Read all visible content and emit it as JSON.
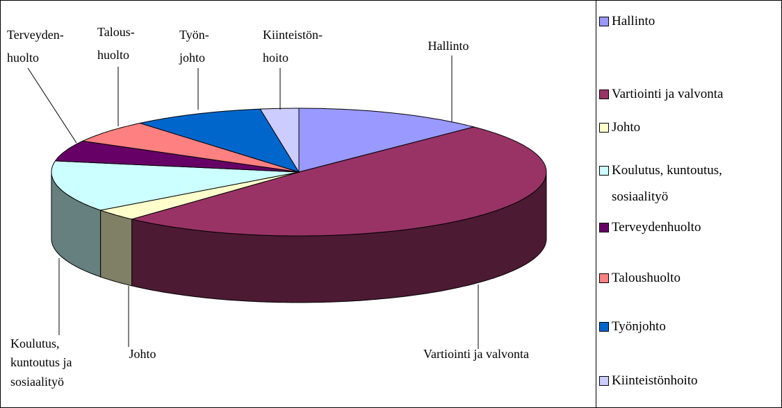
{
  "chart_data": {
    "type": "pie3d",
    "categories": [
      "Hallinto",
      "Vartiointi ja valvonta",
      "Johto",
      "Koulutus, kuntoutus, sosiaalityö",
      "Terveydenhuolto",
      "Taloushuolto",
      "Työnjohto",
      "Kiinteistönhoito"
    ],
    "values": [
      12.5,
      49.3,
      3,
      13,
      5.3,
      5.8,
      8.6,
      2.5
    ],
    "colors": [
      "#9999ff",
      "#993366",
      "#ffffcc",
      "#ccffff",
      "#660066",
      "#ff8080",
      "#0066cc",
      "#ccccff"
    ],
    "labels": [
      [
        "Hallinto"
      ],
      [
        "Vartiointi ja valvonta"
      ],
      [
        "Johto"
      ],
      [
        "Koulutus,",
        "kuntoutus ja",
        "sosiaalityö"
      ],
      [
        "Terveyden-",
        "huolto"
      ],
      [
        "Talous-",
        "huolto"
      ],
      [
        "Työn-",
        "johto"
      ],
      [
        "Kiinteistön-",
        "hoito"
      ]
    ],
    "legend": "right"
  }
}
